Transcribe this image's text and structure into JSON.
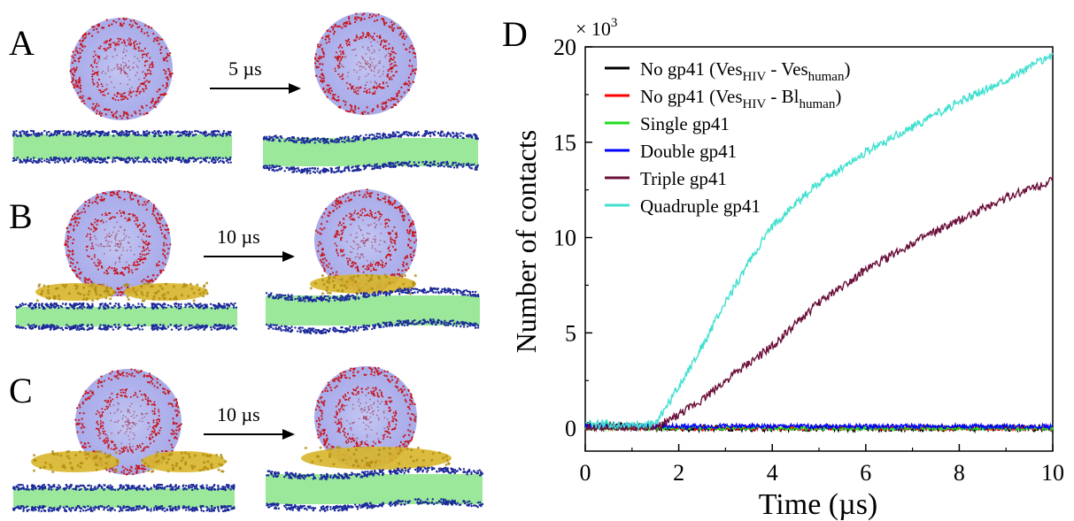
{
  "panels": [
    {
      "label": "A",
      "step": "5 µs"
    },
    {
      "label": "B",
      "step": "10 µs"
    },
    {
      "label": "C",
      "step": "10 µs"
    }
  ],
  "chart_panel_label": "D",
  "colors": {
    "lipid_head_red": "#c8141c",
    "lipid_head_blue": "#1c2a9a",
    "vesicle_fill": "#b3b6ec",
    "bilayer_core": "#9be89b",
    "protein_gold": "#d7b52a"
  },
  "chart_data": {
    "type": "line",
    "xlabel": "Time (µs)",
    "ylabel": "Number of contacts",
    "multiplier": "× 10",
    "multiplier_exp": "3",
    "xlim": [
      0,
      10
    ],
    "ylim": [
      -1.2,
      20
    ],
    "xticks": [
      0,
      2,
      4,
      6,
      8,
      10
    ],
    "yticks": [
      0,
      5,
      10,
      15,
      20
    ],
    "grid": false,
    "legend_position": "top-left",
    "series": [
      {
        "name": "No gp41 (Ves",
        "sub1": "HIV",
        "mid": " - Ves",
        "sub2": "human",
        "end": ")",
        "color": "#000000",
        "x": [
          0,
          1,
          2,
          3,
          4,
          5,
          6,
          7,
          8,
          9,
          10
        ],
        "y": [
          0.2,
          0.1,
          0,
          0,
          0,
          0,
          0,
          0,
          0,
          0,
          0
        ]
      },
      {
        "name": "No gp41 (Ves",
        "sub1": "HIV",
        "mid": " - Bl",
        "sub2": "human",
        "end": ")",
        "color": "#ff0000",
        "x": [
          0,
          1,
          2,
          3,
          4,
          5,
          6,
          7,
          8,
          9,
          10
        ],
        "y": [
          0,
          0,
          0,
          0,
          0,
          0,
          0,
          0,
          0,
          0,
          0
        ]
      },
      {
        "name": "Single gp41",
        "color": "#22dd22",
        "x": [
          0,
          1,
          2,
          3,
          4,
          5,
          6,
          7,
          8,
          9,
          10
        ],
        "y": [
          0,
          0,
          0,
          0,
          0,
          0,
          0,
          0,
          0,
          0,
          0
        ]
      },
      {
        "name": "Double gp41",
        "color": "#0000ff",
        "x": [
          0,
          1,
          2,
          3,
          4,
          5,
          6,
          7,
          8,
          9,
          10
        ],
        "y": [
          0.1,
          0.1,
          0.1,
          0.1,
          0.1,
          0.1,
          0.1,
          0.1,
          0.1,
          0.1,
          0.1
        ]
      },
      {
        "name": "Triple gp41",
        "color": "#6b0f3a",
        "x": [
          0,
          1.5,
          2,
          2.5,
          3,
          4,
          5,
          6,
          7,
          8,
          9,
          10
        ],
        "y": [
          0,
          0,
          0.7,
          1.5,
          2.5,
          4.3,
          6.6,
          8.3,
          9.7,
          10.9,
          12.1,
          13.0
        ]
      },
      {
        "name": "Quadruple gp41",
        "color": "#40e0d0",
        "x": [
          0,
          1.5,
          2,
          2.5,
          3,
          3.5,
          4,
          5,
          6,
          7,
          8,
          9,
          10
        ],
        "y": [
          0.2,
          0.2,
          2.2,
          4.3,
          6.6,
          8.7,
          10.6,
          12.9,
          14.5,
          15.8,
          17.1,
          18.3,
          19.6
        ]
      }
    ]
  }
}
